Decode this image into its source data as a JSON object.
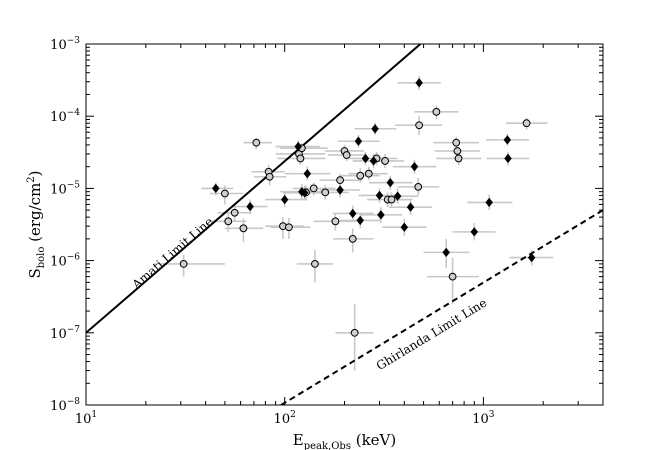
{
  "chart_data": {
    "type": "scatter",
    "x_scale": "log",
    "y_scale": "log",
    "xlim": [
      10,
      4000
    ],
    "ylim": [
      1e-08,
      0.001
    ],
    "xlabel": {
      "main": "E",
      "sub": "peak,Obs",
      "suffix": " (keV)"
    },
    "ylabel": {
      "main": "S",
      "sub": "bolo",
      "suffix": " (erg/cm",
      "sup": "2",
      "close": ")"
    },
    "x_ticks": [
      {
        "value": 10,
        "base": "10",
        "exp": "1"
      },
      {
        "value": 100,
        "base": "10",
        "exp": "2"
      },
      {
        "value": 1000,
        "base": "10",
        "exp": "3"
      }
    ],
    "y_ticks": [
      {
        "value": 1e-08,
        "base": "10",
        "exp": "−8"
      },
      {
        "value": 1e-07,
        "base": "10",
        "exp": "−7"
      },
      {
        "value": 1e-06,
        "base": "10",
        "exp": "−6"
      },
      {
        "value": 1e-05,
        "base": "10",
        "exp": "−5"
      },
      {
        "value": 0.0001,
        "base": "10",
        "exp": "−4"
      },
      {
        "value": 0.001,
        "base": "10",
        "exp": "−3"
      }
    ],
    "grid": false,
    "colors": {
      "errorbar": "#c8c8c8",
      "open_fill": "#cfcfcf",
      "filled": "#000000",
      "line": "#000000"
    },
    "lines": [
      {
        "label": "Amati Limit Line",
        "style": "solid",
        "points": [
          [
            10,
            1e-07
          ],
          [
            482,
            0.001
          ]
        ]
      },
      {
        "label": "Ghirlanda Limit Line",
        "style": "dashed",
        "points": [
          [
            96,
            1e-08
          ],
          [
            4000,
            5e-06
          ]
        ]
      }
    ],
    "series": [
      {
        "marker": "circle-open",
        "points": [
          {
            "x": 31,
            "y": 9e-07,
            "xerr": [
              22,
              50
            ],
            "yerr": [
              6e-07,
              1.2e-06
            ]
          },
          {
            "x": 50,
            "y": 8.5e-06,
            "xerr": [
              42,
              62
            ],
            "yerr": [
              6e-06,
              1.1e-05
            ]
          },
          {
            "x": 52,
            "y": 3.5e-06,
            "xerr": [
              42,
              64
            ],
            "yerr": [
              2.5e-06,
              4.5e-06
            ]
          },
          {
            "x": 56,
            "y": 4.6e-06,
            "xerr": [
              46,
              68
            ],
            "yerr": [
              3.5e-06,
              6e-06
            ]
          },
          {
            "x": 62,
            "y": 2.8e-06,
            "xerr": [
              50,
              78
            ],
            "yerr": [
              1.8e-06,
              3.8e-06
            ]
          },
          {
            "x": 72,
            "y": 4.3e-05,
            "xerr": [
              62,
              86
            ],
            "yerr": [
              3.5e-05,
              5e-05
            ]
          },
          {
            "x": 83,
            "y": 1.7e-05,
            "xerr": [
              68,
              100
            ],
            "yerr": [
              1.3e-05,
              2.1e-05
            ]
          },
          {
            "x": 84,
            "y": 1.45e-05,
            "xerr": [
              70,
              102
            ],
            "yerr": [
              1.1e-05,
              1.8e-05
            ]
          },
          {
            "x": 98,
            "y": 3e-06,
            "xerr": [
              80,
              125
            ],
            "yerr": [
              2e-06,
              4e-06
            ]
          },
          {
            "x": 105,
            "y": 2.9e-06,
            "xerr": [
              85,
              135
            ],
            "yerr": [
              2e-06,
              3.9e-06
            ]
          },
          {
            "x": 118,
            "y": 3e-05,
            "xerr": [
              90,
              160
            ],
            "yerr": [
              2.5e-05,
              3.6e-05
            ]
          },
          {
            "x": 120,
            "y": 2.6e-05,
            "xerr": [
              92,
              160
            ],
            "yerr": [
              2.1e-05,
              3.2e-05
            ]
          },
          {
            "x": 122,
            "y": 3.6e-05,
            "xerr": [
              95,
              165
            ],
            "yerr": [
              3e-05,
              4.2e-05
            ]
          },
          {
            "x": 128,
            "y": 8.8e-06,
            "xerr": [
              100,
              170
            ],
            "yerr": [
              6.8e-06,
              1.1e-05
            ]
          },
          {
            "x": 140,
            "y": 1e-05,
            "xerr": [
              110,
              180
            ],
            "yerr": [
              8e-06,
              1.2e-05
            ]
          },
          {
            "x": 142,
            "y": 9e-07,
            "xerr": [
              115,
              175
            ],
            "yerr": [
              5e-07,
              1.4e-06
            ]
          },
          {
            "x": 160,
            "y": 8.8e-06,
            "xerr": [
              125,
              210
            ],
            "yerr": [
              7e-06,
              1.1e-05
            ]
          },
          {
            "x": 180,
            "y": 3.5e-06,
            "xerr": [
              140,
              230
            ],
            "yerr": [
              2.6e-06,
              4.5e-06
            ]
          },
          {
            "x": 190,
            "y": 1.3e-05,
            "xerr": [
              150,
              245
            ],
            "yerr": [
              1e-05,
              1.6e-05
            ]
          },
          {
            "x": 200,
            "y": 3.3e-05,
            "xerr": [
              160,
              250
            ],
            "yerr": [
              2.7e-05,
              4e-05
            ]
          },
          {
            "x": 205,
            "y": 2.9e-05,
            "xerr": [
              165,
              255
            ],
            "yerr": [
              2.4e-05,
              3.5e-05
            ]
          },
          {
            "x": 220,
            "y": 2e-06,
            "xerr": [
              175,
              280
            ],
            "yerr": [
              1.3e-06,
              2.8e-06
            ]
          },
          {
            "x": 225,
            "y": 1e-07,
            "xerr": [
              180,
              280
            ],
            "yerr": [
              3e-08,
              2.5e-07
            ]
          },
          {
            "x": 240,
            "y": 1.5e-05,
            "xerr": [
              190,
              300
            ],
            "yerr": [
              1.2e-05,
              1.9e-05
            ]
          },
          {
            "x": 265,
            "y": 1.6e-05,
            "xerr": [
              210,
              330
            ],
            "yerr": [
              1.3e-05,
              2e-05
            ]
          },
          {
            "x": 290,
            "y": 2.6e-05,
            "xerr": [
              230,
              370
            ],
            "yerr": [
              2.1e-05,
              3.2e-05
            ]
          },
          {
            "x": 320,
            "y": 2.4e-05,
            "xerr": [
              250,
              400
            ],
            "yerr": [
              1.9e-05,
              3e-05
            ]
          },
          {
            "x": 330,
            "y": 7e-06,
            "xerr": [
              260,
              420
            ],
            "yerr": [
              5.5e-06,
              8.8e-06
            ]
          },
          {
            "x": 345,
            "y": 7e-06,
            "xerr": [
              270,
              440
            ],
            "yerr": [
              5.5e-06,
              8.8e-06
            ]
          },
          {
            "x": 470,
            "y": 1.05e-05,
            "xerr": [
              370,
              600
            ],
            "yerr": [
              8e-06,
              1.4e-05
            ]
          },
          {
            "x": 475,
            "y": 7.5e-05,
            "xerr": [
              360,
              620
            ],
            "yerr": [
              5.5e-05,
              0.0001
            ]
          },
          {
            "x": 580,
            "y": 0.000115,
            "xerr": [
              450,
              750
            ],
            "yerr": [
              9e-05,
              0.00014
            ]
          },
          {
            "x": 700,
            "y": 6e-07,
            "xerr": [
              520,
              950
            ],
            "yerr": [
              2.5e-07,
              1.1e-06
            ]
          },
          {
            "x": 730,
            "y": 4.3e-05,
            "xerr": [
              560,
              950
            ],
            "yerr": [
              3.5e-05,
              5.2e-05
            ]
          },
          {
            "x": 740,
            "y": 3.3e-05,
            "xerr": [
              570,
              960
            ],
            "yerr": [
              2.7e-05,
              4e-05
            ]
          },
          {
            "x": 750,
            "y": 2.6e-05,
            "xerr": [
              580,
              980
            ],
            "yerr": [
              2.1e-05,
              3.2e-05
            ]
          },
          {
            "x": 1650,
            "y": 8e-05,
            "xerr": [
              1300,
              2100
            ],
            "yerr": [
              6.5e-05,
              9.5e-05
            ]
          }
        ]
      },
      {
        "marker": "diamond-filled",
        "points": [
          {
            "x": 45,
            "y": 1e-05,
            "xerr": [
              38,
              55
            ],
            "yerr": [
              8e-06,
              1.2e-05
            ]
          },
          {
            "x": 67,
            "y": 5.6e-06,
            "xerr": [
              55,
              82
            ],
            "yerr": [
              4.4e-06,
              7e-06
            ]
          },
          {
            "x": 100,
            "y": 7e-06,
            "xerr": [
              80,
              130
            ],
            "yerr": [
              5.5e-06,
              9e-06
            ]
          },
          {
            "x": 117,
            "y": 3.8e-05,
            "xerr": [
              90,
              150
            ],
            "yerr": [
              3.1e-05,
              4.6e-05
            ]
          },
          {
            "x": 122,
            "y": 9e-06,
            "xerr": [
              95,
              160
            ],
            "yerr": [
              7e-06,
              1.15e-05
            ]
          },
          {
            "x": 126,
            "y": 8.7e-06,
            "xerr": [
              98,
              165
            ],
            "yerr": [
              6.8e-06,
              1.1e-05
            ]
          },
          {
            "x": 130,
            "y": 1.6e-05,
            "xerr": [
              100,
              170
            ],
            "yerr": [
              1.3e-05,
              2e-05
            ]
          },
          {
            "x": 190,
            "y": 9.5e-06,
            "xerr": [
              150,
              240
            ],
            "yerr": [
              7.5e-06,
              1.2e-05
            ]
          },
          {
            "x": 220,
            "y": 4.5e-06,
            "xerr": [
              175,
              280
            ],
            "yerr": [
              3.5e-06,
              5.8e-06
            ]
          },
          {
            "x": 235,
            "y": 4.5e-05,
            "xerr": [
              185,
              300
            ],
            "yerr": [
              3.7e-05,
              5.5e-05
            ]
          },
          {
            "x": 240,
            "y": 3.6e-06,
            "xerr": [
              190,
              305
            ],
            "yerr": [
              2.8e-06,
              4.6e-06
            ]
          },
          {
            "x": 255,
            "y": 2.6e-05,
            "xerr": [
              200,
              325
            ],
            "yerr": [
              2.1e-05,
              3.2e-05
            ]
          },
          {
            "x": 280,
            "y": 2.4e-05,
            "xerr": [
              220,
              360
            ],
            "yerr": [
              1.9e-05,
              3e-05
            ]
          },
          {
            "x": 285,
            "y": 6.7e-05,
            "xerr": [
              225,
              365
            ],
            "yerr": [
              5.5e-05,
              8.2e-05
            ]
          },
          {
            "x": 300,
            "y": 8e-06,
            "xerr": [
              235,
              385
            ],
            "yerr": [
              6.3e-06,
              1e-05
            ]
          },
          {
            "x": 305,
            "y": 4.3e-06,
            "xerr": [
              240,
              390
            ],
            "yerr": [
              3.3e-06,
              5.5e-06
            ]
          },
          {
            "x": 340,
            "y": 1.2e-05,
            "xerr": [
              265,
              440
            ],
            "yerr": [
              9.5e-06,
              1.5e-05
            ]
          },
          {
            "x": 370,
            "y": 7.8e-06,
            "xerr": [
              290,
              470
            ],
            "yerr": [
              6.1e-06,
              1e-05
            ]
          },
          {
            "x": 400,
            "y": 2.9e-06,
            "xerr": [
              310,
              520
            ],
            "yerr": [
              2.2e-06,
              3.8e-06
            ]
          },
          {
            "x": 430,
            "y": 5.5e-06,
            "xerr": [
              335,
              550
            ],
            "yerr": [
              4.3e-06,
              7e-06
            ]
          },
          {
            "x": 450,
            "y": 2e-05,
            "xerr": [
              350,
              580
            ],
            "yerr": [
              1.6e-05,
              2.5e-05
            ]
          },
          {
            "x": 475,
            "y": 0.00029,
            "xerr": [
              370,
              610
            ],
            "yerr": [
              0.00023,
              0.00036
            ]
          },
          {
            "x": 650,
            "y": 1.3e-06,
            "xerr": [
              500,
              850
            ],
            "yerr": [
              8e-07,
              2e-06
            ]
          },
          {
            "x": 900,
            "y": 2.5e-06,
            "xerr": [
              700,
              1150
            ],
            "yerr": [
              1.9e-06,
              3.3e-06
            ]
          },
          {
            "x": 1070,
            "y": 6.4e-06,
            "xerr": [
              830,
              1400
            ],
            "yerr": [
              5e-06,
              8.2e-06
            ]
          },
          {
            "x": 1320,
            "y": 4.7e-05,
            "xerr": [
              1030,
              1700
            ],
            "yerr": [
              3.9e-05,
              5.7e-05
            ]
          },
          {
            "x": 1330,
            "y": 2.6e-05,
            "xerr": [
              1040,
              1700
            ],
            "yerr": [
              2.1e-05,
              3.2e-05
            ]
          },
          {
            "x": 1750,
            "y": 1.1e-06,
            "xerr": [
              1350,
              2250
            ],
            "yerr": [
              8.5e-07,
              1.4e-06
            ]
          }
        ]
      }
    ],
    "annotations": [
      {
        "text": "Amati Limit Line",
        "x": 18,
        "y": 4e-07,
        "angle_line": 0
      },
      {
        "text": "Ghirlanda Limit Line",
        "x": 300,
        "y": 3e-08,
        "angle_line": 1
      }
    ]
  }
}
